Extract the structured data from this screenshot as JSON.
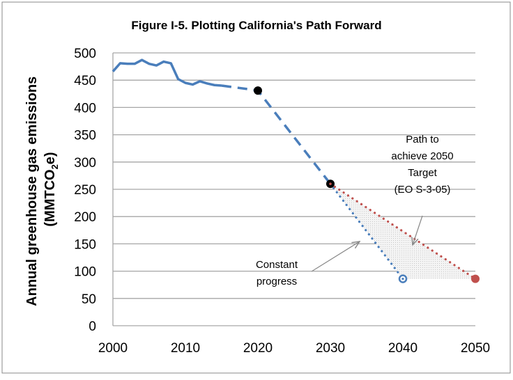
{
  "chart_data": {
    "type": "line",
    "title": "Figure I-5. Plotting California's Path Forward",
    "xlabel": "",
    "ylabel": "Annual greenhouse gas emissions",
    "ylabel_unit_pre": "(MMTCO",
    "ylabel_unit_sub": "2",
    "ylabel_unit_post": "e)",
    "xlim": [
      2000,
      2050
    ],
    "ylim": [
      0,
      500
    ],
    "xticks": [
      2000,
      2010,
      2020,
      2030,
      2040,
      2050
    ],
    "yticks": [
      0,
      50,
      100,
      150,
      200,
      250,
      300,
      350,
      400,
      450,
      500
    ],
    "grid": "horizontal",
    "series": [
      {
        "style": "solid",
        "color": "#4a7ebb",
        "x": [
          2000,
          2001,
          2002,
          2003,
          2004,
          2005,
          2006,
          2007,
          2008,
          2009,
          2010,
          2011,
          2012,
          2013,
          2014,
          2015
        ],
        "y": [
          466,
          481,
          480,
          480,
          487,
          480,
          477,
          484,
          481,
          452,
          445,
          442,
          448,
          444,
          441,
          440
        ]
      },
      {
        "style": "dashed",
        "color": "#4a7ebb",
        "x": [
          2015,
          2019,
          2020,
          2030
        ],
        "y": [
          440,
          433,
          431,
          260
        ]
      },
      {
        "style": "dotted",
        "color": "#4a7ebb",
        "x": [
          2030,
          2040
        ],
        "y": [
          260,
          86
        ]
      },
      {
        "style": "dotted",
        "color": "#c0504d",
        "x": [
          2030,
          2050
        ],
        "y": [
          260,
          86
        ]
      }
    ],
    "markers": [
      {
        "x": 2020,
        "y": 431,
        "type": "filled",
        "color": "#000000"
      },
      {
        "x": 2030,
        "y": 260,
        "type": "filled",
        "color": "#000000"
      },
      {
        "x": 2040,
        "y": 86,
        "type": "ring",
        "color": "#4a7ebb"
      },
      {
        "x": 2050,
        "y": 86,
        "type": "filled",
        "color": "#c0504d"
      }
    ],
    "annotations": {
      "target": [
        "Path to",
        "achieve 2050",
        "Target",
        "(EO S-3-05)"
      ],
      "constant": [
        "Constant",
        "progress"
      ]
    }
  }
}
